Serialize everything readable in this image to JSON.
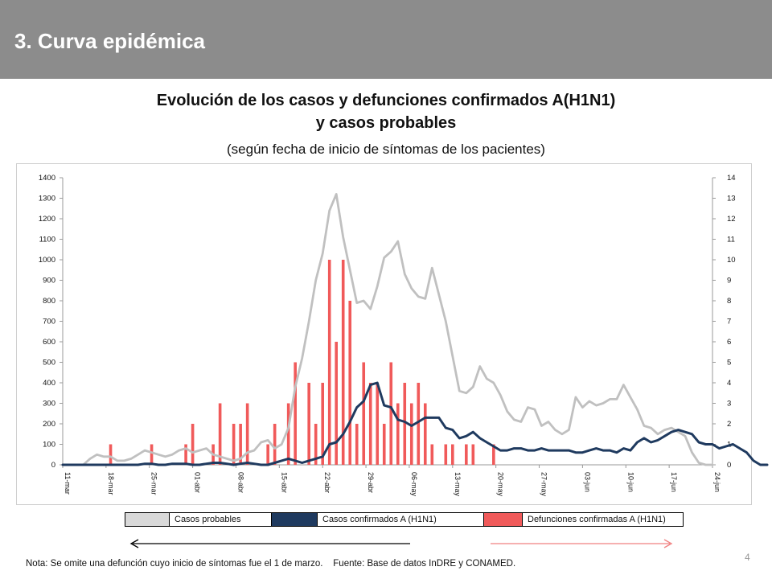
{
  "header": {
    "title": "3. Curva epidémica"
  },
  "chart_data": {
    "type": "bar",
    "title": "Evolución de los casos y defunciones confirmados A(H1N1)",
    "title_line2": "y casos probables",
    "subtitle": "(según fecha de inicio de síntomas de los pacientes)",
    "x_tick_labels": [
      "11-mar",
      "18-mar",
      "25-mar",
      "01-abr",
      "08-abr",
      "15-abr",
      "22-abr",
      "29-abr",
      "06-may",
      "13-may",
      "20-may",
      "27-may",
      "03-jun",
      "10-jun",
      "17-jun",
      "24-jun"
    ],
    "y_left": {
      "range": [
        0,
        1400
      ],
      "ticks": [
        0,
        100,
        200,
        300,
        400,
        500,
        600,
        700,
        800,
        900,
        1000,
        1100,
        1200,
        1300,
        1400
      ]
    },
    "y_right": {
      "range": [
        0,
        14
      ],
      "ticks": [
        0,
        1,
        2,
        3,
        4,
        5,
        6,
        7,
        8,
        9,
        10,
        11,
        12,
        13,
        14
      ]
    },
    "grid": false,
    "legend_position": "bottom",
    "series": [
      {
        "name": "Casos probables",
        "type": "line",
        "axis": "left",
        "color": "#c0c0c0",
        "values": [
          0,
          0,
          0,
          0,
          30,
          50,
          40,
          40,
          20,
          20,
          30,
          50,
          70,
          60,
          50,
          40,
          50,
          70,
          80,
          60,
          70,
          80,
          50,
          40,
          30,
          20,
          30,
          60,
          70,
          110,
          120,
          80,
          100,
          180,
          380,
          520,
          700,
          900,
          1030,
          1240,
          1320,
          1110,
          950,
          790,
          800,
          760,
          870,
          1010,
          1040,
          1090,
          930,
          860,
          820,
          810,
          960,
          830,
          700,
          530,
          360,
          350,
          380,
          480,
          420,
          400,
          340,
          260,
          220,
          210,
          280,
          270,
          190,
          210,
          170,
          150,
          170,
          330,
          280,
          310,
          290,
          300,
          320,
          320,
          390,
          330,
          270,
          190,
          180,
          150,
          170,
          180,
          160,
          140,
          60,
          10,
          0,
          0
        ]
      },
      {
        "name": "Casos confirmados A (H1N1)",
        "type": "line",
        "axis": "left",
        "color": "#1f3a5f",
        "values": [
          0,
          0,
          0,
          0,
          0,
          0,
          0,
          0,
          0,
          0,
          0,
          0,
          5,
          5,
          0,
          0,
          5,
          5,
          5,
          0,
          0,
          5,
          10,
          10,
          5,
          0,
          5,
          10,
          5,
          0,
          0,
          10,
          20,
          30,
          20,
          10,
          20,
          30,
          40,
          100,
          110,
          150,
          210,
          280,
          310,
          390,
          400,
          290,
          280,
          220,
          210,
          190,
          210,
          230,
          230,
          230,
          180,
          170,
          130,
          140,
          160,
          130,
          110,
          90,
          70,
          70,
          80,
          80,
          70,
          70,
          80,
          70,
          70,
          70,
          70,
          60,
          60,
          70,
          80,
          70,
          70,
          60,
          80,
          70,
          110,
          130,
          110,
          120,
          140,
          160,
          170,
          160,
          150,
          110,
          100,
          100,
          80,
          90,
          100,
          80,
          60,
          20,
          0,
          0
        ]
      },
      {
        "name": "Defunciones confirmadas A (H1N1)",
        "type": "bar",
        "axis": "right",
        "color": "#f05a5a",
        "values": [
          0,
          0,
          0,
          0,
          0,
          0,
          0,
          1,
          0,
          0,
          0,
          0,
          0,
          1,
          0,
          0,
          0,
          0,
          1,
          2,
          0,
          0,
          1,
          3,
          0,
          2,
          2,
          3,
          0,
          0,
          1,
          2,
          0,
          3,
          5,
          0,
          4,
          2,
          4,
          10,
          6,
          10,
          8,
          2,
          5,
          4,
          4,
          2,
          5,
          3,
          4,
          3,
          4,
          3,
          1,
          0,
          1,
          1,
          0,
          1,
          1,
          0,
          0,
          1,
          0,
          0,
          0,
          0,
          0,
          0,
          0,
          0,
          0,
          0,
          0,
          0,
          0,
          0,
          0,
          0,
          0,
          0,
          0,
          0,
          0,
          0,
          0,
          0,
          0,
          0,
          0,
          0,
          0,
          0,
          0,
          0,
          0,
          0,
          0,
          0,
          0,
          0,
          0,
          0,
          0
        ]
      }
    ]
  },
  "legend": {
    "items": [
      {
        "label": "Casos probables",
        "color": "#d9d9d9"
      },
      {
        "label": "Casos confirmados A (H1N1)",
        "color": "#1f3a5f"
      },
      {
        "label": "Defunciones confirmadas A (H1N1)",
        "color": "#f05a5a"
      }
    ]
  },
  "arrows": {
    "left_color": "#000000",
    "right_color": "#f08080"
  },
  "footer": {
    "note": "Nota: Se omite una defunción cuyo inicio de síntomas fue el 1 de marzo.    Fuente: Base de datos InDRE y CONAMED.",
    "page_number": "4"
  }
}
